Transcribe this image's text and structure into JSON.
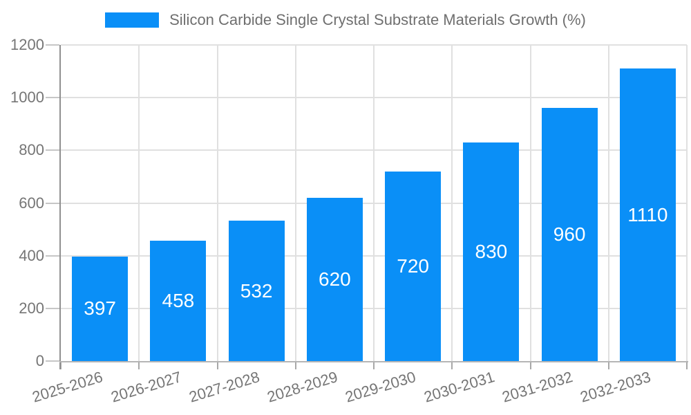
{
  "legend": {
    "label": "Silicon Carbide Single Crystal Substrate Materials Growth (%)"
  },
  "chart_data": {
    "type": "bar",
    "title": "Silicon Carbide Single Crystal Substrate Materials Growth (%)",
    "series_name": "Silicon Carbide Single Crystal Substrate Materials Growth (%)",
    "categories": [
      "2025-2026",
      "2026-2027",
      "2027-2028",
      "2028-2029",
      "2029-2030",
      "2030-2031",
      "2031-2032",
      "2032-2033"
    ],
    "values": [
      397,
      458,
      532,
      620,
      720,
      830,
      960,
      1110
    ],
    "xlabel": "",
    "ylabel": "",
    "ylim": [
      0,
      1200
    ],
    "yticks": [
      0,
      200,
      400,
      600,
      800,
      1000,
      1200
    ],
    "grid": true,
    "legend_position": "top",
    "bar_value_labels": "centered-inside-white",
    "x_label_rotation_deg": -17,
    "colors": {
      "bar": "#0a8ff7",
      "bar_label": "#ffffff",
      "axis_text": "#757575",
      "title_text": "#6f6f6f",
      "gridline": "#e0e0e0",
      "y_axis_line": "#8f8f8f",
      "x_axis_line": "#b5b5b5",
      "y_tick": "#c6c6c6",
      "x_tick": "#a8a8a8",
      "background": "#ffffff"
    }
  }
}
